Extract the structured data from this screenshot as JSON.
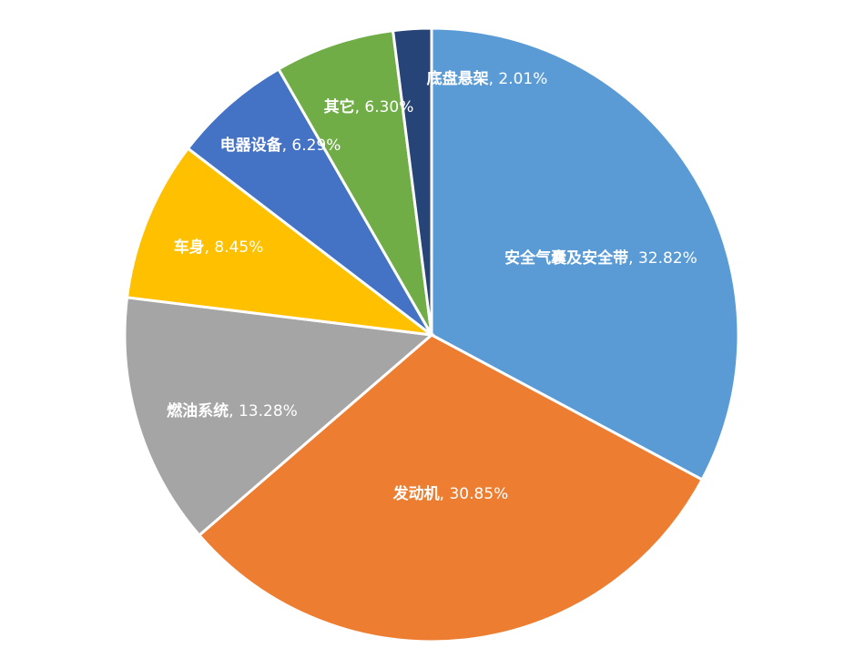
{
  "chart_data": {
    "type": "pie",
    "categories": [
      "安全气囊及安全带",
      "发动机",
      "燃油系统",
      "车身",
      "电器设备",
      "其它",
      "底盘悬架"
    ],
    "values": [
      32.82,
      30.85,
      13.28,
      8.45,
      6.29,
      6.3,
      2.01
    ],
    "value_labels": [
      ", 32.82%",
      ", 30.85%",
      ", 13.28%",
      ", 8.45%",
      ", 6.29%",
      ", 6.30%",
      ", 2.01%"
    ],
    "colors": [
      "#5b9bd5",
      "#ed7d31",
      "#a5a5a5",
      "#ffc000",
      "#4472c4",
      "#70ad47",
      "#264478"
    ]
  }
}
